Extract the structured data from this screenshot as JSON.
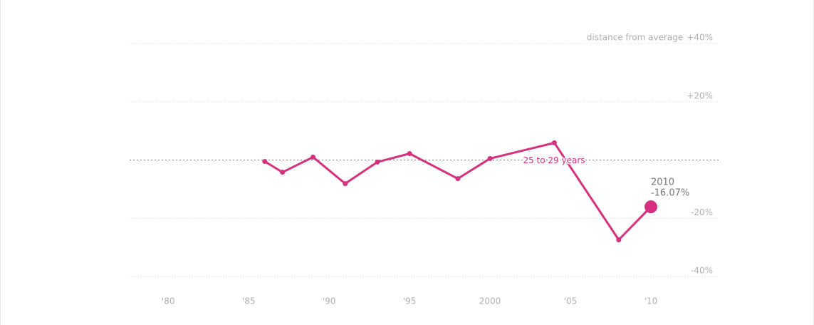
{
  "chart_data": {
    "type": "line",
    "annotation": "distance from average",
    "x": [
      1986,
      1987.1,
      1989,
      1991,
      1993,
      1995,
      1998,
      2000,
      2004,
      2008,
      2010
    ],
    "series": [
      {
        "name": "25 to 29 years",
        "color": "#d6317f",
        "values": [
          -0.5,
          -4.2,
          1.0,
          -8.1,
          -0.7,
          2.2,
          -6.4,
          0.5,
          5.9,
          -27.4,
          -16.07
        ],
        "value_labels": [
          null,
          null,
          null,
          null,
          null,
          null,
          null,
          null,
          null,
          null,
          "-16.07%"
        ]
      }
    ],
    "xlim": [
      1977.6,
      2014.25
    ],
    "xticks": [
      {
        "value": 1980,
        "label": "'80"
      },
      {
        "value": 1985,
        "label": "'85"
      },
      {
        "value": 1990,
        "label": "'90"
      },
      {
        "value": 1995,
        "label": "'95"
      },
      2000,
      {
        "value": 2005,
        "label": "'05"
      },
      {
        "value": 2010,
        "label": "'10"
      }
    ],
    "ylim": [
      -40,
      40
    ],
    "yticks": [
      {
        "value": 40,
        "label": "+40%"
      },
      {
        "value": 20,
        "label": "+20%"
      },
      {
        "value": -20,
        "label": "-20%"
      },
      {
        "value": -40,
        "label": "-40%"
      }
    ],
    "reference_line": 0,
    "grid": true
  }
}
